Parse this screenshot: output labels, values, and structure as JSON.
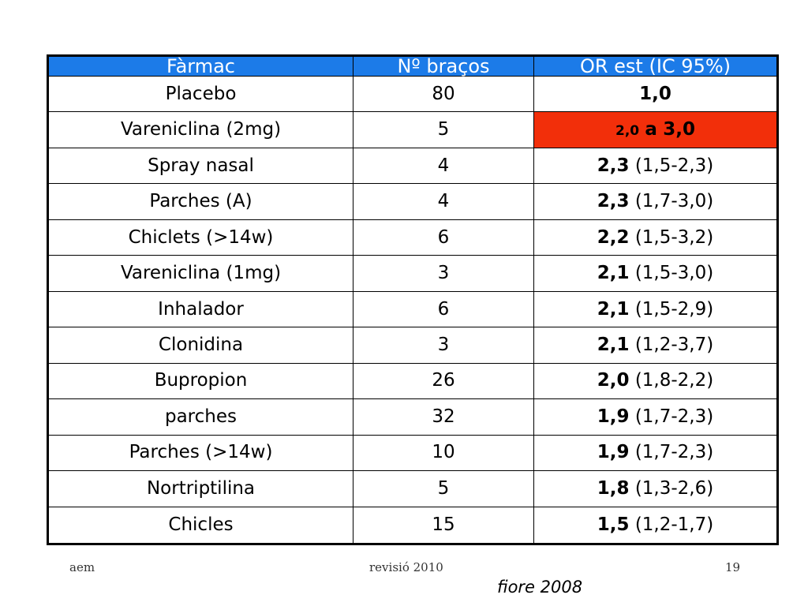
{
  "table": {
    "headers": [
      "Fàrmac",
      "Nº braços",
      "OR est (IC 95%)"
    ],
    "rows": [
      {
        "drug": "Placebo",
        "arms": "80",
        "or": "1,0",
        "ci": ""
      },
      {
        "drug": "Vareniclina (2mg)",
        "arms": "5",
        "or": "",
        "ci": "",
        "range_low": "2,0",
        "range_mid": "a",
        "range_high": "3,0"
      },
      {
        "drug": "Spray nasal",
        "arms": "4",
        "or": "2,3",
        "ci": "(1,5-2,3)"
      },
      {
        "drug": "Parches (A)",
        "arms": "4",
        "or": "2,3",
        "ci": "(1,7-3,0)"
      },
      {
        "drug": "Chiclets (>14w)",
        "arms": "6",
        "or": "2,2",
        "ci": "(1,5-3,2)"
      },
      {
        "drug": "Vareniclina (1mg)",
        "arms": "3",
        "or": "2,1",
        "ci": "(1,5-3,0)"
      },
      {
        "drug": "Inhalador",
        "arms": "6",
        "or": "2,1",
        "ci": "(1,5-2,9)"
      },
      {
        "drug": "Clonidina",
        "arms": "3",
        "or": "2,1",
        "ci": "(1,2-3,7)"
      },
      {
        "drug": "Bupropion",
        "arms": "26",
        "or": "2,0",
        "ci": "(1,8-2,2)"
      },
      {
        "drug": "parches",
        "arms": "32",
        "or": "1,9",
        "ci": "(1,7-2,3)"
      },
      {
        "drug": "Parches (>14w)",
        "arms": "10",
        "or": "1,9",
        "ci": "(1,7-2,3)"
      },
      {
        "drug": "Nortriptilina",
        "arms": "5",
        "or": "1,8",
        "ci": "(1,3-2,6)"
      },
      {
        "drug": "Chicles",
        "arms": "15",
        "or": "1,5",
        "ci": "(1,2-1,7)"
      }
    ]
  },
  "footer": {
    "left": "aem",
    "center": "revisió 2010",
    "right": "19"
  },
  "source_note": "fiore 2008",
  "colors": {
    "header_bg": "#1c7be8",
    "highlight_bg": "#f22f0a"
  }
}
